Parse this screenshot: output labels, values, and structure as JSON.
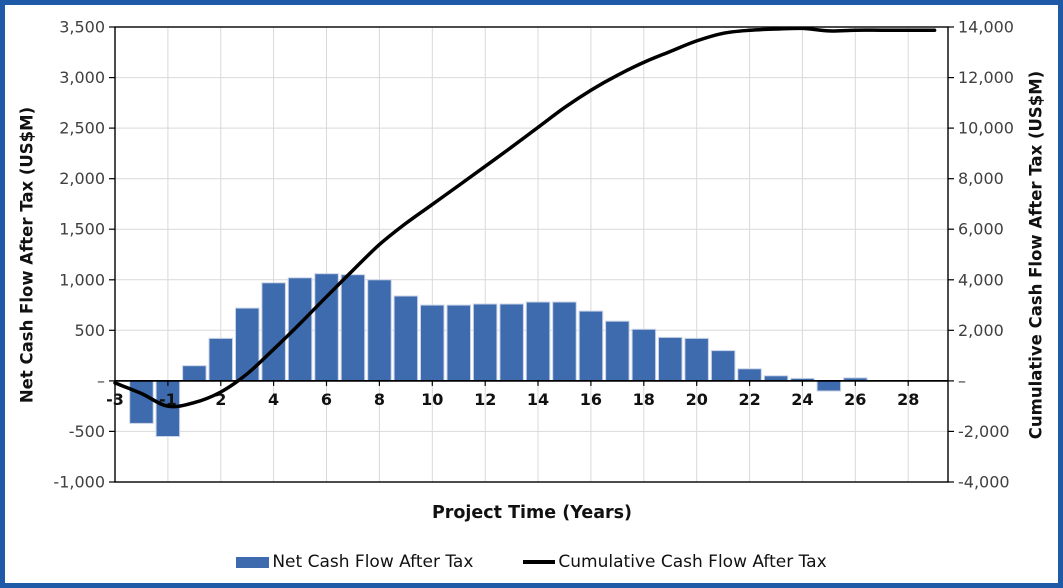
{
  "frame": {
    "border_color": "#1F5AA9",
    "background_color": "#FFFFFF"
  },
  "chart_data": {
    "type": "combo",
    "title": "",
    "xlabel": "Project Time (Years)",
    "x_categories": [
      -3,
      -2,
      -1,
      1,
      2,
      3,
      4,
      5,
      6,
      7,
      8,
      9,
      10,
      11,
      12,
      13,
      14,
      15,
      16,
      17,
      18,
      19,
      20,
      21,
      22,
      23,
      24,
      25,
      26,
      27,
      28,
      29
    ],
    "x_tick_labels": [
      "-3",
      "-1",
      "2",
      "4",
      "6",
      "8",
      "10",
      "12",
      "14",
      "16",
      "18",
      "20",
      "22",
      "24",
      "26",
      "28"
    ],
    "left_axis": {
      "title": "Net Cash Flow After Tax (US$M)",
      "min": -1000,
      "max": 3500,
      "step": 500,
      "tick_labels": [
        "3,500",
        "3,000",
        "2,500",
        "2,000",
        "1,500",
        "1,000",
        "500",
        "–",
        "-500",
        "-1,000"
      ]
    },
    "right_axis": {
      "title": "Cumulative Cash Flow After Tax (US$M)",
      "min": -4000,
      "max": 14000,
      "step": 2000,
      "tick_labels": [
        "14,000",
        "12,000",
        "10,000",
        "8,000",
        "6,000",
        "4,000",
        "2,000",
        "–",
        "-2,000",
        "-4,000"
      ]
    },
    "series": [
      {
        "name": "Net Cash Flow After Tax",
        "type": "bar",
        "axis": "left",
        "color": "#3E6BAD",
        "edge_color": "#C9D3E8",
        "values": [
          0,
          -420,
          -550,
          150,
          420,
          720,
          970,
          1020,
          1060,
          1050,
          1000,
          840,
          750,
          750,
          760,
          760,
          780,
          780,
          690,
          590,
          510,
          430,
          420,
          300,
          120,
          50,
          25,
          -100,
          30,
          0,
          0,
          0
        ]
      },
      {
        "name": "Cumulative Cash Flow After Tax",
        "type": "line",
        "axis": "right",
        "color": "#000000",
        "values": [
          -80,
          -500,
          -1000,
          -860,
          -440,
          280,
          1250,
          2270,
          3330,
          4380,
          5390,
          6230,
          6980,
          7730,
          8490,
          9250,
          10030,
          10810,
          11500,
          12090,
          12600,
          13030,
          13450,
          13750,
          13870,
          13920,
          13945,
          13845,
          13875,
          13875,
          13875,
          13875
        ]
      }
    ],
    "grid": true,
    "grid_color": "#D9D9D9",
    "tick_label_color": "#404040",
    "legend_position": "bottom"
  },
  "legend": {
    "items": [
      {
        "label": "Net Cash Flow After Tax"
      },
      {
        "label": "Cumulative Cash Flow After Tax"
      }
    ]
  }
}
